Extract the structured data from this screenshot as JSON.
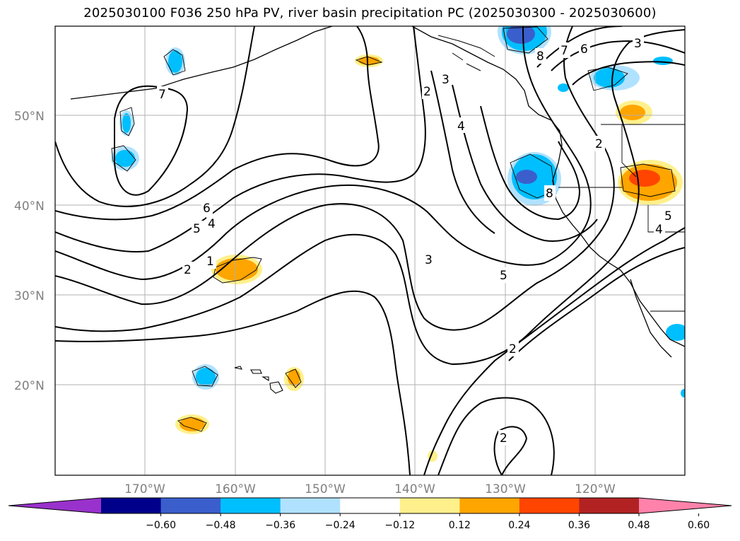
{
  "title": "2025030100 F036 250 hPa PV, river basin precipitation PC (2025030300 - 2025030600)",
  "lat_labels": [
    "50°N",
    "40°N",
    "30°N",
    "20°N"
  ],
  "lon_labels": [
    "170°W",
    "160°W",
    "150°W",
    "140°W",
    "130°W",
    "120°W"
  ],
  "colorbar": {
    "ticks": [
      "−0.60",
      "−0.48",
      "−0.36",
      "−0.24",
      "−0.12",
      "0.12",
      "0.24",
      "0.36",
      "0.48",
      "0.60"
    ],
    "colors": [
      "#9932cc",
      "#00008b",
      "#3a5fcd",
      "#00bfff",
      "#b0e2ff",
      "#ffffff",
      "#fff08c",
      "#ffa500",
      "#ff4500",
      "#b22222",
      "#ff82ab"
    ]
  },
  "contour_labels": [
    "2",
    "3",
    "4",
    "5",
    "6",
    "7",
    "8",
    "1"
  ],
  "colors": {
    "grid": "#b0b0b0",
    "axis_text": "#808080"
  }
}
